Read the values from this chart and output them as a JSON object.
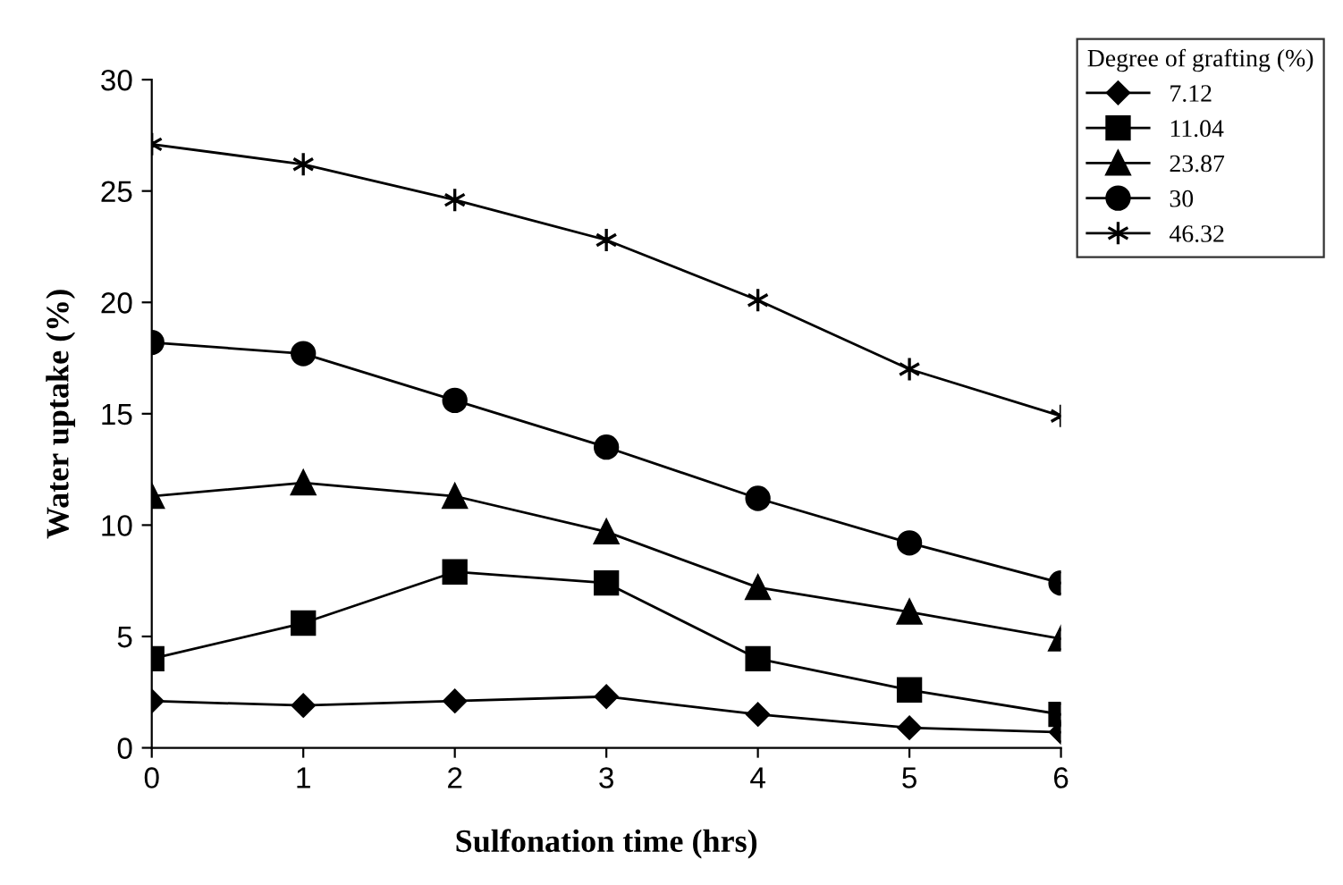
{
  "chart_data": {
    "type": "line",
    "xlabel": "Sulfonation time (hrs)",
    "ylabel": "Water uptake (%)",
    "legend_title": "Degree of grafting (%)",
    "x": [
      0,
      1,
      2,
      3,
      4,
      5,
      6
    ],
    "series": [
      {
        "name": "7.12",
        "color": "#000000",
        "marker": "diamond",
        "values": [
          2.1,
          1.9,
          2.1,
          2.3,
          1.5,
          0.9,
          0.7
        ]
      },
      {
        "name": "11.04",
        "color": "#000000",
        "marker": "square",
        "values": [
          4.0,
          5.6,
          7.9,
          7.4,
          4.0,
          2.6,
          1.5
        ]
      },
      {
        "name": "23.87",
        "color": "#000000",
        "marker": "triangle",
        "values": [
          11.3,
          11.9,
          11.3,
          9.7,
          7.2,
          6.1,
          4.9
        ]
      },
      {
        "name": "30",
        "color": "#000000",
        "marker": "circle",
        "values": [
          18.2,
          17.7,
          15.6,
          13.5,
          11.2,
          9.2,
          7.4
        ]
      },
      {
        "name": "46.32",
        "color": "#000000",
        "marker": "cross",
        "values": [
          27.1,
          26.2,
          24.6,
          22.8,
          20.1,
          17.0,
          14.9
        ]
      }
    ],
    "xlim": [
      0,
      6
    ],
    "xticks": [
      0,
      1,
      2,
      3,
      4,
      5,
      6
    ],
    "ylim": [
      0,
      30
    ],
    "yticks": [
      0,
      5,
      10,
      15,
      20,
      25,
      30
    ],
    "grid": false,
    "legend": "top right",
    "line_style": "solid"
  }
}
